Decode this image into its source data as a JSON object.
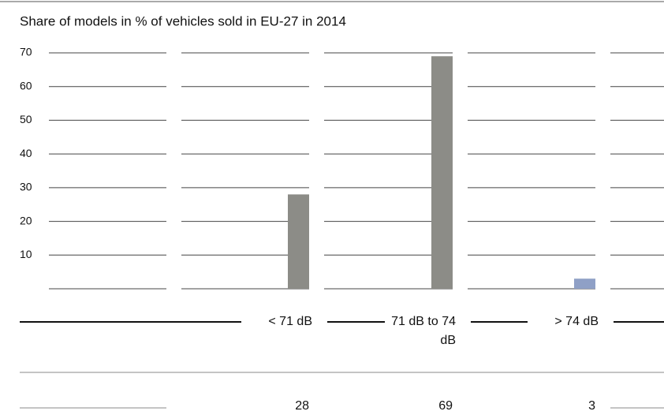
{
  "chart_data": {
    "type": "bar",
    "title": "Share of models in % of vehicles sold in EU-27 in 2014",
    "categories": [
      "< 71 dB",
      "71 dB to 74 dB",
      "> 74 dB"
    ],
    "values": [
      28,
      69,
      3
    ],
    "colors": [
      "#8c8c87",
      "#8c8c87",
      "#8fa0c6"
    ],
    "ylim": [
      0,
      70
    ],
    "yticks": [
      10,
      20,
      30,
      40,
      50,
      60,
      70
    ],
    "grid": true
  }
}
